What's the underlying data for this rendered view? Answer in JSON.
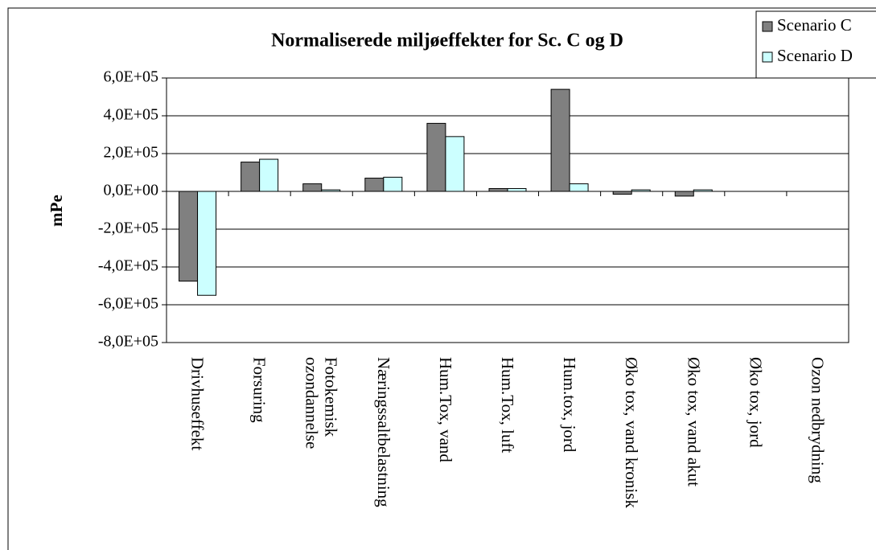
{
  "chart_data": {
    "type": "bar",
    "title": "Normaliserede miljøeffekter for Sc. C og D",
    "y_label": "mPe",
    "categories": [
      "Drivhuseffekt",
      "Forsuring",
      "Fotokemisk\nozondannelse",
      "Næringssaltbelastning",
      "Hum.Tox, vand",
      "Hum.Tox, luft",
      "Hum.tox, jord",
      "Øko tox, vand kronisk",
      "Øko tox, vand akut",
      "Øko tox, jord",
      "Ozon nedbrydning"
    ],
    "series": [
      {
        "name": "Scenario C",
        "color": "#808080",
        "values": [
          -475000,
          155000,
          40000,
          70000,
          360000,
          15000,
          540000,
          -15000,
          -25000,
          0,
          0
        ]
      },
      {
        "name": "Scenario D",
        "color": "#ccffff",
        "values": [
          -550000,
          170000,
          8000,
          75000,
          290000,
          15000,
          40000,
          8000,
          8000,
          0,
          0
        ]
      }
    ],
    "ylim": [
      -800000,
      600000
    ],
    "yticks": [
      {
        "value": -800000,
        "label": "-8,0E+05"
      },
      {
        "value": -600000,
        "label": "-6,0E+05"
      },
      {
        "value": -400000,
        "label": "-4,0E+05"
      },
      {
        "value": -200000,
        "label": "-2,0E+05"
      },
      {
        "value": 0,
        "label": "0,0E+00"
      },
      {
        "value": 200000,
        "label": "2,0E+05"
      },
      {
        "value": 400000,
        "label": "4,0E+05"
      },
      {
        "value": 600000,
        "label": "6,0E+05"
      }
    ],
    "grid": true,
    "legend": "top-right"
  }
}
